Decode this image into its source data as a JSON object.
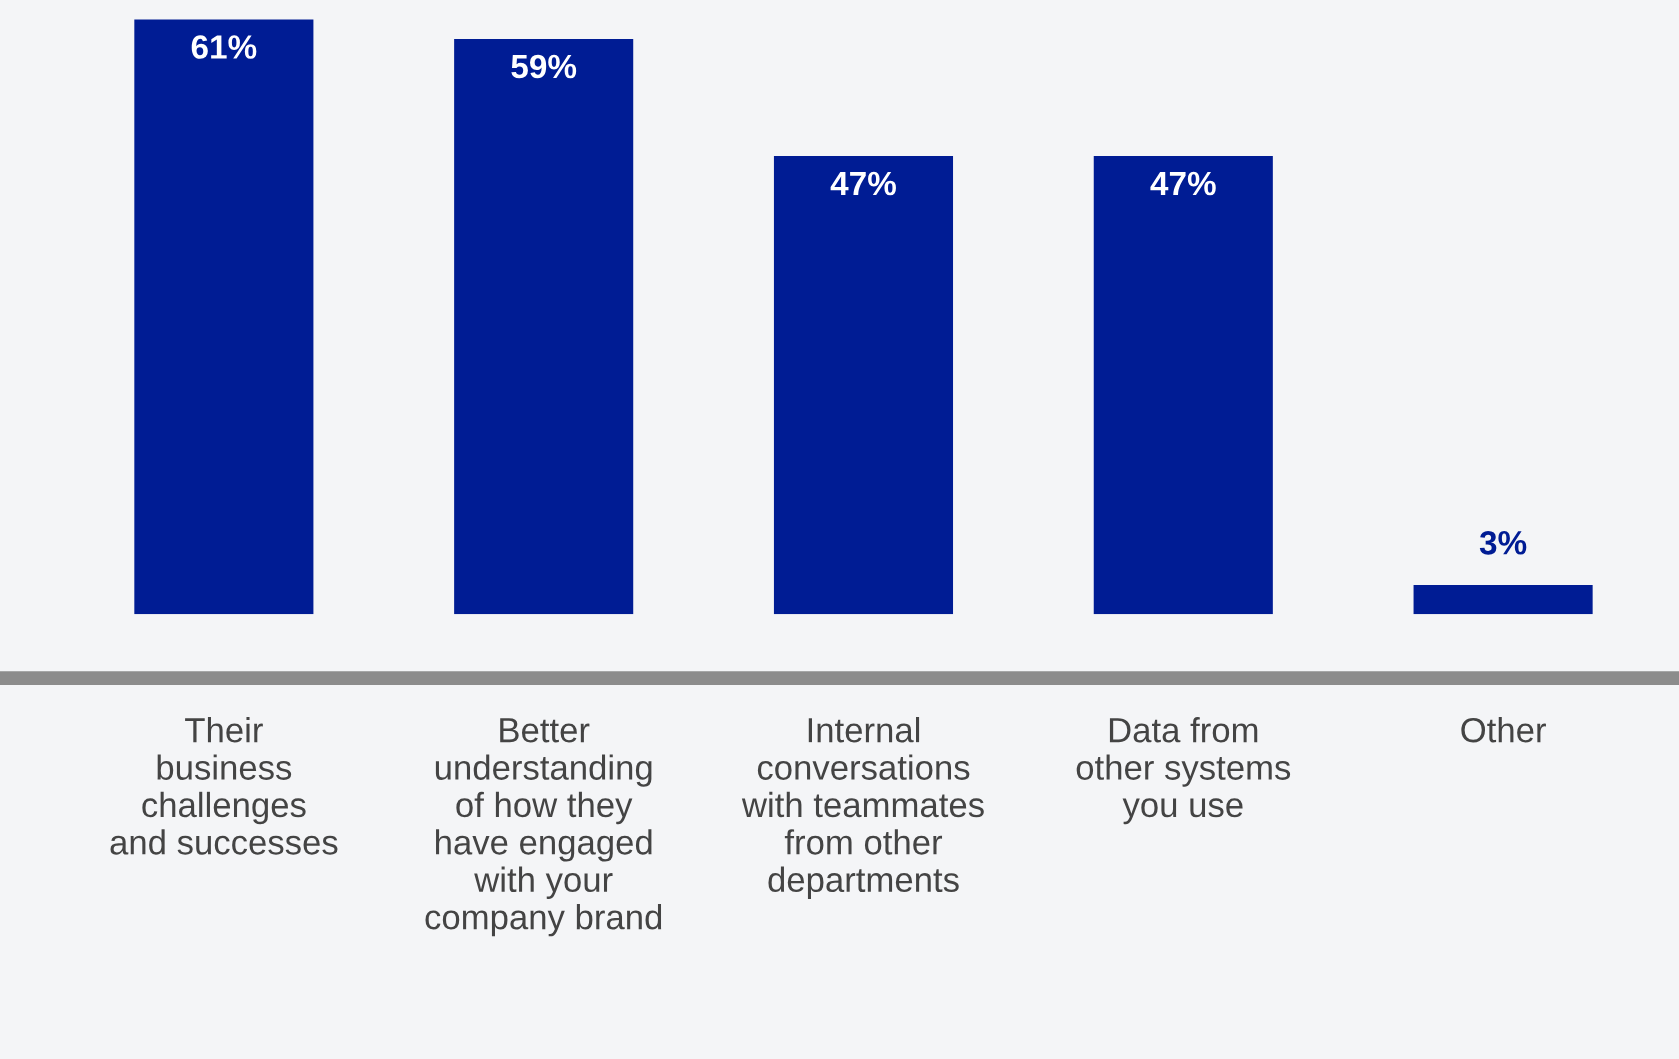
{
  "chart_data": {
    "type": "bar",
    "categories": [
      "Their\nbusiness\nchallenges\nand successes",
      "Better\nunderstanding\nof how they\nhave engaged\nwith your\ncompany brand",
      "Internal\nconversations\nwith teammates\nfrom other\ndepartments",
      "Data from\nother systems\nyou use",
      "Other"
    ],
    "values": [
      61,
      59,
      47,
      47,
      3
    ],
    "value_labels": [
      "61%",
      "59%",
      "47%",
      "47%",
      "3%"
    ],
    "color": "#001c94",
    "grid": false,
    "legend": false
  }
}
